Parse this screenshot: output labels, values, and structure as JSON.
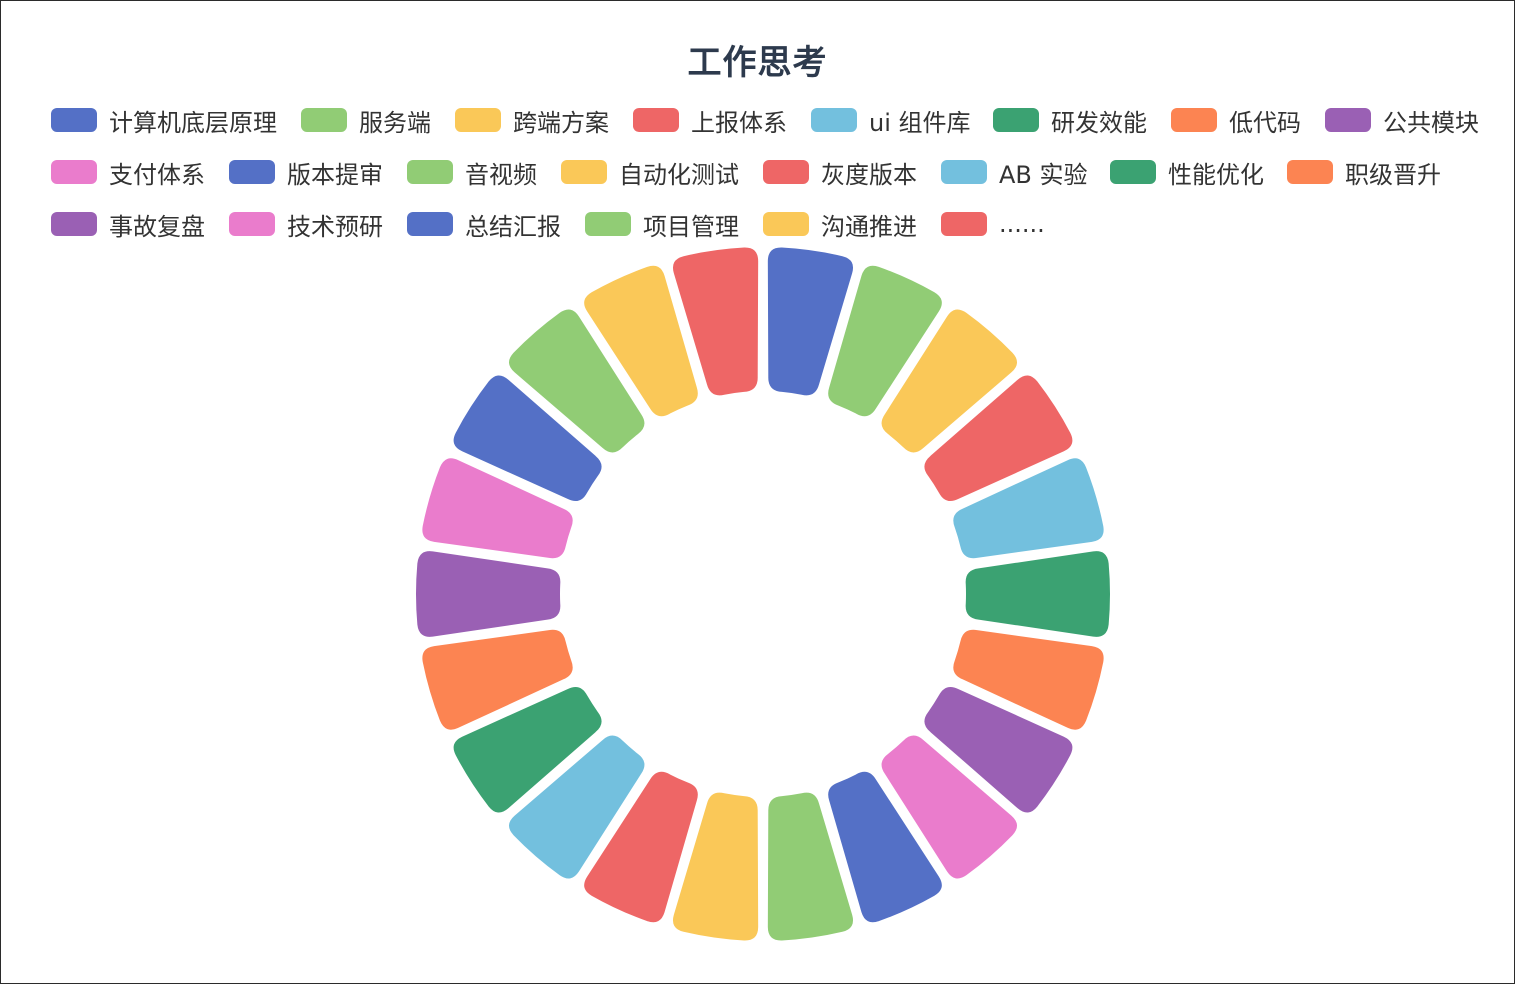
{
  "chart_data": {
    "type": "pie",
    "variant": "donut-rounded",
    "title": "工作思考",
    "legend_position": "top",
    "categories": [
      "计算机底层原理",
      "服务端",
      "跨端方案",
      "上报体系",
      "ui 组件库",
      "研发效能",
      "低代码",
      "公共模块",
      "支付体系",
      "版本提审",
      "音视频",
      "自动化测试",
      "灰度版本",
      "AB 实验",
      "性能优化",
      "职级晋升",
      "事故复盘",
      "技术预研",
      "总结汇报",
      "项目管理",
      "沟通推进",
      "......"
    ],
    "values": [
      1,
      1,
      1,
      1,
      1,
      1,
      1,
      1,
      1,
      1,
      1,
      1,
      1,
      1,
      1,
      1,
      1,
      1,
      1,
      1,
      1,
      1
    ],
    "colors": [
      "#5470c6",
      "#91cc75",
      "#fac858",
      "#ee6666",
      "#73c0de",
      "#3ba272",
      "#fc8452",
      "#9a60b4",
      "#ea7ccc"
    ]
  }
}
